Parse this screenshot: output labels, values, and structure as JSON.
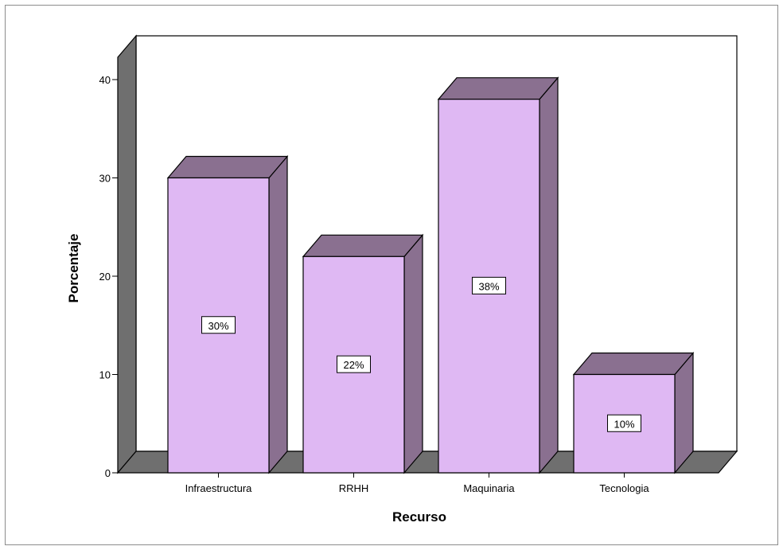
{
  "chart_data": {
    "type": "bar",
    "title": "",
    "xlabel": "Recurso",
    "ylabel": "Porcentaje",
    "categories": [
      "Infraestructura",
      "RRHH",
      "Maquinaria",
      "Tecnologia"
    ],
    "values": [
      30,
      22,
      38,
      10
    ],
    "data_labels": [
      "30%",
      "22%",
      "38%",
      "10%"
    ],
    "ylim": [
      0,
      40
    ],
    "yticks": [
      0,
      10,
      20,
      30,
      40
    ],
    "ytick_labels": [
      "0",
      "10",
      "20",
      "30",
      "40"
    ],
    "grid": false,
    "style": "3d",
    "colors": {
      "bar_front": "#dfb8f3",
      "bar_top": "#8a7090",
      "bar_side": "#8a7090",
      "floor": "#6f6f6f",
      "back_wall": "#ffffff",
      "side_wall": "#6f6f6f",
      "outline": "#000000"
    }
  }
}
